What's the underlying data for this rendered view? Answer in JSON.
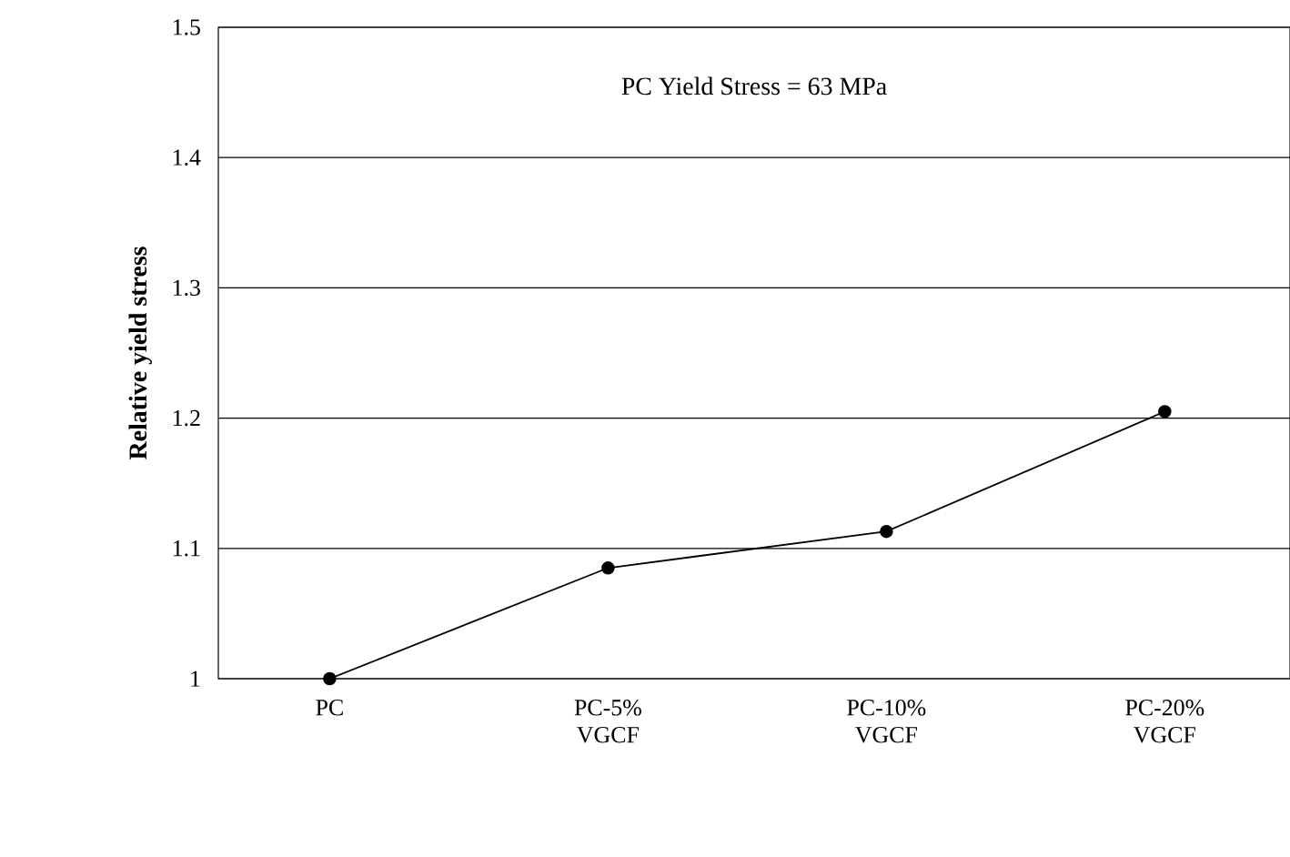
{
  "chart_data": {
    "type": "line",
    "ylabel": "Relative yield stress",
    "annotations": [
      "PC Yield Stress = 63 MPa"
    ],
    "categories": [
      "PC",
      "PC-5% VGCF",
      "PC-10% VGCF",
      "PC-20% VGCF"
    ],
    "series": [
      {
        "color": "#000000",
        "values": [
          1.0,
          1.085,
          1.113,
          1.205
        ]
      }
    ],
    "ylim": [
      1,
      1.5
    ],
    "yticks": [
      1,
      1.1,
      1.2,
      1.3,
      1.4,
      1.5
    ],
    "grid": "y",
    "marker": "circle",
    "line_style": "solid"
  }
}
